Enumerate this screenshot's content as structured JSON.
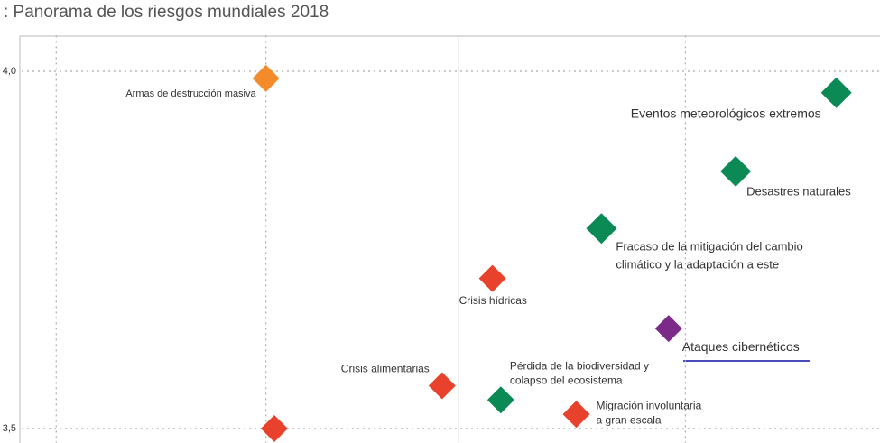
{
  "chart_data": {
    "type": "scatter",
    "title": ": Panorama de los riesgos mundiales 2018",
    "xlim": [
      3.433,
      4.482
    ],
    "xticks": [
      3.5,
      3.75,
      4.25,
      4.5
    ],
    "ylim": [
      3.48,
      4.05
    ],
    "yticks": [
      {
        "value": 4.0,
        "label": "4,0"
      },
      {
        "value": 3.5,
        "label": "3,5"
      }
    ],
    "x_average": 3.98,
    "grid": true,
    "points": [
      {
        "label": [
          "Armas de destrucción masiva"
        ],
        "x": 3.75,
        "y": 3.99,
        "color": "#f38b2a"
      },
      {
        "label": [
          "Eventos meteorológicos extremos"
        ],
        "x": 4.43,
        "y": 3.97,
        "color": "#0b8a56"
      },
      {
        "label": [
          "Desastres naturales"
        ],
        "x": 4.31,
        "y": 3.86,
        "color": "#0b8a56"
      },
      {
        "label": [
          "Fracaso de la mitigación del cambio",
          "climático y la adaptación a este"
        ],
        "x": 4.15,
        "y": 3.78,
        "color": "#0b8a56"
      },
      {
        "label": [
          "Crisis hídricas"
        ],
        "x": 4.02,
        "y": 3.71,
        "color": "#e8412c"
      },
      {
        "label": [
          "Ataques cibernéticos"
        ],
        "x": 4.23,
        "y": 3.64,
        "color": "#7b2a8a"
      },
      {
        "label": [
          "Crisis alimentarias"
        ],
        "x": 3.96,
        "y": 3.56,
        "color": "#e8412c"
      },
      {
        "label": [
          "Pérdida de la biodiversidad y",
          "colapso del ecosistema"
        ],
        "x": 4.03,
        "y": 3.54,
        "color": "#0b8a56"
      },
      {
        "label": [
          "Migración involuntaria",
          "a gran escala"
        ],
        "x": 4.12,
        "y": 3.52,
        "color": "#e8412c"
      },
      {
        "label": null,
        "x": 3.76,
        "y": 3.5,
        "color": "#e8412c"
      }
    ]
  }
}
